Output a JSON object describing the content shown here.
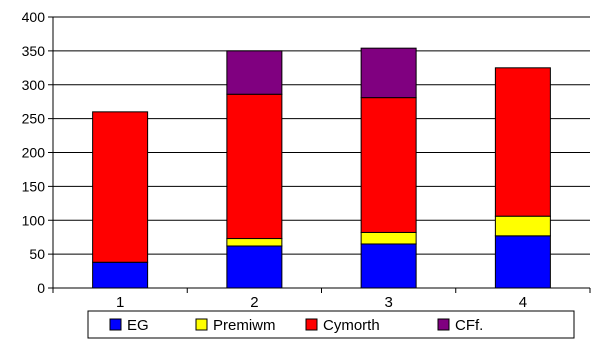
{
  "chart_data": {
    "type": "bar",
    "stacked": true,
    "title": "",
    "xlabel": "",
    "ylabel": "",
    "categories": [
      "1",
      "2",
      "3",
      "4"
    ],
    "ylim": [
      0,
      400
    ],
    "yticks": [
      "0",
      "50",
      "100",
      "150",
      "200",
      "250",
      "300",
      "350",
      "400"
    ],
    "grid": true,
    "legend_position": "bottom",
    "series": [
      {
        "name": "EG",
        "color": "#0000ff",
        "values": [
          38,
          62,
          65,
          77
        ]
      },
      {
        "name": "Premiwm",
        "color": "#ffff00",
        "values": [
          0,
          11,
          17,
          29
        ]
      },
      {
        "name": "Cymorth",
        "color": "#ff0000",
        "values": [
          222,
          213,
          199,
          219
        ]
      },
      {
        "name": "CFf.",
        "color": "#800080",
        "values": [
          0,
          64,
          73,
          0
        ]
      }
    ]
  }
}
